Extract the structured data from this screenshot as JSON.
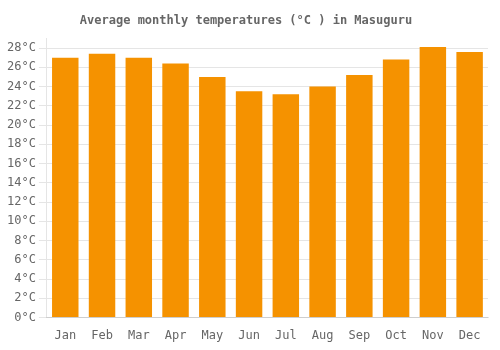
{
  "chart_data": {
    "type": "bar",
    "title": "Average monthly temperatures (°C ) in Masuguru",
    "categories": [
      "Jan",
      "Feb",
      "Mar",
      "Apr",
      "May",
      "Jun",
      "Jul",
      "Aug",
      "Sep",
      "Oct",
      "Nov",
      "Dec"
    ],
    "values": [
      27.0,
      27.4,
      27.0,
      26.4,
      25.0,
      23.5,
      23.2,
      24.0,
      25.2,
      26.8,
      28.1,
      27.6
    ],
    "color": "#F59200",
    "ylim": [
      0,
      29
    ],
    "yticks": [
      {
        "value": 0,
        "label": "0°C"
      },
      {
        "value": 2,
        "label": "2°C"
      },
      {
        "value": 4,
        "label": "4°C"
      },
      {
        "value": 6,
        "label": "6°C"
      },
      {
        "value": 8,
        "label": "8°C"
      },
      {
        "value": 10,
        "label": "10°C"
      },
      {
        "value": 12,
        "label": "12°C"
      },
      {
        "value": 14,
        "label": "14°C"
      },
      {
        "value": 16,
        "label": "16°C"
      },
      {
        "value": 18,
        "label": "18°C"
      },
      {
        "value": 20,
        "label": "20°C"
      },
      {
        "value": 22,
        "label": "22°C"
      },
      {
        "value": 24,
        "label": "24°C"
      },
      {
        "value": 26,
        "label": "26°C"
      },
      {
        "value": 28,
        "label": "28°C"
      }
    ],
    "grid": true
  }
}
